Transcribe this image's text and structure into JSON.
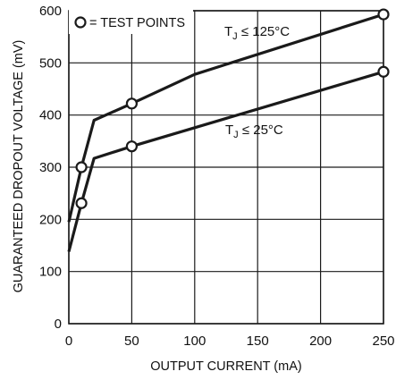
{
  "chart_data": {
    "type": "line",
    "xlabel": "OUTPUT CURRENT (mA)",
    "ylabel": "GUARANTEED DROPOUT VOLTAGE (mV)",
    "xlim": [
      0,
      250
    ],
    "ylim": [
      0,
      600
    ],
    "x_ticks": [
      0,
      50,
      100,
      150,
      200,
      250
    ],
    "y_ticks": [
      0,
      100,
      200,
      300,
      400,
      500,
      600
    ],
    "grid": true,
    "legend": {
      "label": "= TEST POINTS",
      "marker": "open-circle",
      "position": "top-left"
    },
    "series": [
      {
        "name": "T_J ≤ 125°C",
        "label_main": "T",
        "label_sub": "J",
        "label_rest": " ≤ 125°C",
        "x": [
          0,
          10,
          20,
          50,
          100,
          250
        ],
        "y": [
          195,
          300,
          390,
          422,
          478,
          593
        ],
        "test_points_x": [
          10,
          50,
          250
        ],
        "test_points_y": [
          300,
          422,
          593
        ]
      },
      {
        "name": "T_J ≤ 25°C",
        "label_main": "T",
        "label_sub": "J",
        "label_rest": " ≤ 25°C",
        "x": [
          0,
          10,
          20,
          50,
          250
        ],
        "y": [
          138,
          231,
          317,
          340,
          483
        ],
        "test_points_x": [
          10,
          50,
          250
        ],
        "test_points_y": [
          231,
          340,
          483
        ]
      }
    ],
    "colors": {
      "line": "#1a1a1a",
      "grid": "#1a1a1a",
      "marker_fill": "#ffffff"
    }
  }
}
